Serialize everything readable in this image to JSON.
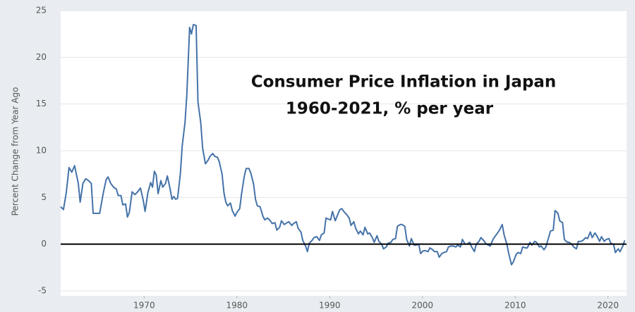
{
  "chart_data": {
    "type": "line",
    "title": [
      "Consumer Price Inflation in Japan",
      "1960-2021, % per year"
    ],
    "y_label": "Percent Change from Year Ago",
    "color": "#4472a8",
    "grid": true,
    "zero_line_color": "#000000",
    "xlim": [
      1961,
      2022
    ],
    "xticks": [
      1970,
      1980,
      1990,
      2000,
      2010,
      2020
    ],
    "ylim": [
      -5,
      25
    ],
    "yticks": [
      -5,
      0,
      5,
      10,
      15,
      20,
      25
    ],
    "x": [
      1961.0,
      1961.3,
      1961.6,
      1961.9,
      1962.2,
      1962.5,
      1962.9,
      1963.1,
      1963.4,
      1963.7,
      1964.0,
      1964.3,
      1964.5,
      1965.0,
      1965.2,
      1965.6,
      1965.9,
      1966.1,
      1966.4,
      1966.7,
      1967.0,
      1967.2,
      1967.5,
      1967.7,
      1968.0,
      1968.2,
      1968.4,
      1968.7,
      1969.0,
      1969.3,
      1969.6,
      1969.9,
      1970.1,
      1970.4,
      1970.7,
      1970.9,
      1971.1,
      1971.3,
      1971.5,
      1971.8,
      1972.0,
      1972.3,
      1972.5,
      1972.8,
      1973.0,
      1973.2,
      1973.4,
      1973.6,
      1973.9,
      1974.1,
      1974.4,
      1974.6,
      1974.9,
      1975.1,
      1975.3,
      1975.6,
      1975.8,
      1976.1,
      1976.3,
      1976.6,
      1976.9,
      1977.1,
      1977.4,
      1977.6,
      1977.9,
      1978.1,
      1978.4,
      1978.6,
      1978.8,
      1979.0,
      1979.3,
      1979.5,
      1979.8,
      1980.0,
      1980.3,
      1980.5,
      1980.8,
      1981.0,
      1981.3,
      1981.5,
      1981.8,
      1982.0,
      1982.2,
      1982.5,
      1982.8,
      1983.0,
      1983.3,
      1983.6,
      1983.8,
      1984.1,
      1984.3,
      1984.6,
      1984.8,
      1985.1,
      1985.4,
      1985.6,
      1985.9,
      1986.1,
      1986.4,
      1986.6,
      1986.9,
      1987.1,
      1987.4,
      1987.6,
      1987.8,
      1988.1,
      1988.3,
      1988.6,
      1988.9,
      1989.1,
      1989.4,
      1989.6,
      1989.8,
      1990.1,
      1990.3,
      1990.6,
      1990.8,
      1991.1,
      1991.3,
      1991.6,
      1991.8,
      1992.1,
      1992.3,
      1992.6,
      1992.8,
      1993.1,
      1993.3,
      1993.6,
      1993.8,
      1994.1,
      1994.3,
      1994.6,
      1994.8,
      1995.1,
      1995.3,
      1995.6,
      1995.8,
      1996.1,
      1996.3,
      1996.6,
      1996.8,
      1997.1,
      1997.3,
      1997.6,
      1997.8,
      1998.1,
      1998.3,
      1998.6,
      1998.8,
      1999.1,
      1999.3,
      1999.6,
      1999.8,
      2000.1,
      2000.3,
      2000.6,
      2000.8,
      2001.1,
      2001.3,
      2001.6,
      2001.8,
      2002.1,
      2002.3,
      2002.6,
      2002.8,
      2003.1,
      2003.3,
      2003.6,
      2003.8,
      2004.1,
      2004.3,
      2004.6,
      2004.8,
      2005.1,
      2005.3,
      2005.6,
      2005.8,
      2006.1,
      2006.3,
      2006.6,
      2006.8,
      2007.1,
      2007.3,
      2007.6,
      2007.8,
      2008.1,
      2008.3,
      2008.6,
      2008.8,
      2009.1,
      2009.3,
      2009.6,
      2009.8,
      2010.1,
      2010.3,
      2010.6,
      2010.8,
      2011.1,
      2011.3,
      2011.6,
      2011.8,
      2012.1,
      2012.3,
      2012.6,
      2012.8,
      2013.1,
      2013.3,
      2013.6,
      2013.8,
      2014.1,
      2014.3,
      2014.6,
      2014.8,
      2015.1,
      2015.3,
      2015.6,
      2015.8,
      2016.1,
      2016.3,
      2016.6,
      2016.8,
      2017.1,
      2017.3,
      2017.6,
      2017.8,
      2018.1,
      2018.3,
      2018.6,
      2018.8,
      2019.1,
      2019.3,
      2019.6,
      2019.8,
      2020.1,
      2020.3,
      2020.6,
      2020.8,
      2021.1,
      2021.3,
      2021.6,
      2021.8
    ],
    "values": [
      4.0,
      3.7,
      5.5,
      8.2,
      7.7,
      8.4,
      6.5,
      4.5,
      6.5,
      7.0,
      6.8,
      6.5,
      3.3,
      3.3,
      3.3,
      5.5,
      6.9,
      7.2,
      6.5,
      6.1,
      5.9,
      5.2,
      5.2,
      4.2,
      4.3,
      2.9,
      3.4,
      5.6,
      5.3,
      5.6,
      6.0,
      4.7,
      3.5,
      5.5,
      6.6,
      6.1,
      7.8,
      7.4,
      5.4,
      6.8,
      6.1,
      6.5,
      7.3,
      5.9,
      4.8,
      5.1,
      4.8,
      4.9,
      7.5,
      10.5,
      13.0,
      16.0,
      23.2,
      22.5,
      23.5,
      23.4,
      15.2,
      13.0,
      10.3,
      8.6,
      9.0,
      9.4,
      9.7,
      9.4,
      9.3,
      8.8,
      7.5,
      5.5,
      4.5,
      4.1,
      4.4,
      3.6,
      3.0,
      3.4,
      3.8,
      5.4,
      7.3,
      8.1,
      8.1,
      7.6,
      6.4,
      4.8,
      4.1,
      4.0,
      3.0,
      2.6,
      2.8,
      2.5,
      2.2,
      2.3,
      1.5,
      1.8,
      2.5,
      2.1,
      2.3,
      2.4,
      2.0,
      2.2,
      2.4,
      1.7,
      1.3,
      0.4,
      -0.2,
      -0.8,
      0.1,
      0.4,
      0.7,
      0.8,
      0.4,
      1.0,
      1.2,
      2.8,
      2.7,
      2.6,
      3.5,
      2.5,
      3.0,
      3.7,
      3.8,
      3.4,
      3.2,
      2.8,
      2.0,
      2.4,
      1.7,
      1.1,
      1.4,
      1.0,
      1.8,
      1.1,
      1.2,
      0.7,
      0.2,
      0.9,
      0.3,
      0.0,
      -0.5,
      -0.3,
      0.1,
      0.2,
      0.5,
      0.6,
      1.9,
      2.1,
      2.1,
      1.9,
      0.5,
      -0.2,
      0.6,
      -0.1,
      -0.1,
      0.0,
      -1.0,
      -0.7,
      -0.7,
      -0.8,
      -0.4,
      -0.6,
      -0.8,
      -0.8,
      -1.4,
      -1.0,
      -0.9,
      -0.8,
      -0.3,
      -0.2,
      -0.2,
      -0.3,
      -0.1,
      -0.3,
      0.5,
      0.0,
      0.0,
      0.2,
      -0.3,
      -0.8,
      0.0,
      0.3,
      0.7,
      0.4,
      0.1,
      -0.1,
      -0.2,
      0.5,
      0.8,
      1.2,
      1.5,
      2.1,
      1.0,
      0.0,
      -1.0,
      -2.2,
      -1.9,
      -1.1,
      -0.9,
      -1.0,
      -0.3,
      -0.4,
      -0.4,
      0.2,
      -0.1,
      0.3,
      0.2,
      -0.3,
      -0.2,
      -0.6,
      -0.3,
      0.7,
      1.4,
      1.5,
      3.6,
      3.3,
      2.5,
      2.3,
      0.5,
      0.2,
      0.2,
      0.0,
      -0.3,
      -0.5,
      0.3,
      0.3,
      0.4,
      0.7,
      0.6,
      1.3,
      0.7,
      1.2,
      0.9,
      0.3,
      0.8,
      0.3,
      0.5,
      0.6,
      0.1,
      0.0,
      -0.9,
      -0.5,
      -0.8,
      -0.2,
      0.4
    ]
  }
}
